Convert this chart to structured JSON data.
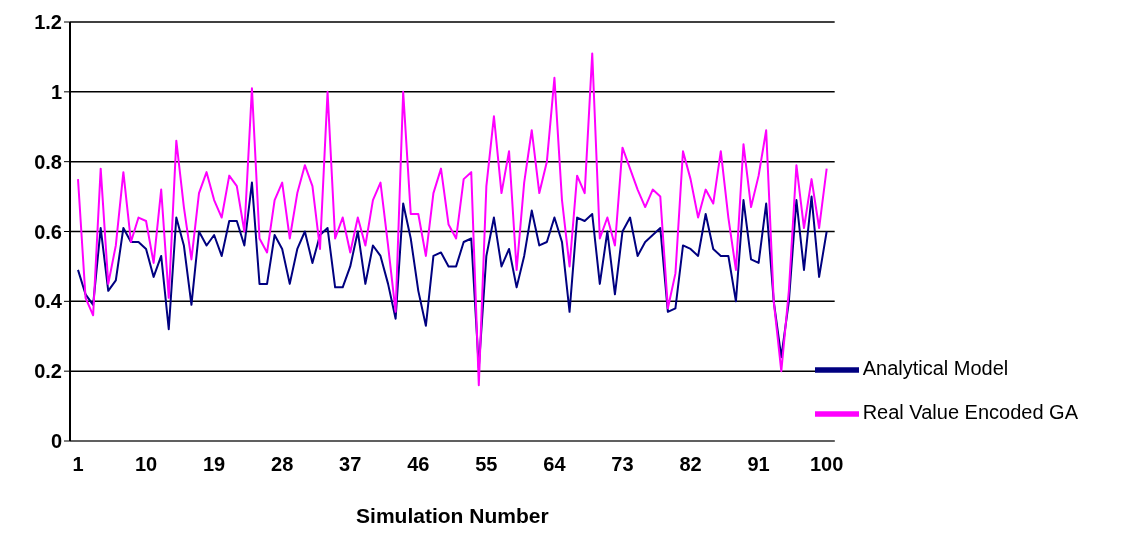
{
  "chart_data": {
    "type": "line",
    "xlabel": "Simulation Number",
    "categories": [
      "1",
      null,
      null,
      null,
      null,
      null,
      null,
      null,
      null,
      "10",
      null,
      null,
      null,
      null,
      null,
      null,
      null,
      null,
      "19",
      null,
      null,
      null,
      null,
      null,
      null,
      null,
      null,
      "28",
      null,
      null,
      null,
      null,
      null,
      null,
      null,
      null,
      "37",
      null,
      null,
      null,
      null,
      null,
      null,
      null,
      null,
      "46",
      null,
      null,
      null,
      null,
      null,
      null,
      null,
      null,
      "55",
      null,
      null,
      null,
      null,
      null,
      null,
      null,
      null,
      "64",
      null,
      null,
      null,
      null,
      null,
      null,
      null,
      null,
      "73",
      null,
      null,
      null,
      null,
      null,
      null,
      null,
      null,
      "82",
      null,
      null,
      null,
      null,
      null,
      null,
      null,
      null,
      "91",
      null,
      null,
      null,
      null,
      null,
      null,
      null,
      null,
      "100"
    ],
    "series": [
      {
        "name": "Analytical Model",
        "color": "#000080",
        "values": [
          0.49,
          0.42,
          0.39,
          0.61,
          0.43,
          0.46,
          0.61,
          0.57,
          0.57,
          0.55,
          0.47,
          0.53,
          0.32,
          0.64,
          0.56,
          0.39,
          0.6,
          0.56,
          0.59,
          0.53,
          0.63,
          0.63,
          0.56,
          0.74,
          0.45,
          0.45,
          0.59,
          0.55,
          0.45,
          0.55,
          0.6,
          0.51,
          0.59,
          0.61,
          0.44,
          0.44,
          0.5,
          0.6,
          0.45,
          0.56,
          0.53,
          0.45,
          0.35,
          0.68,
          0.58,
          0.43,
          0.33,
          0.53,
          0.54,
          0.5,
          0.5,
          0.57,
          0.58,
          0.21,
          0.53,
          0.64,
          0.5,
          0.55,
          0.44,
          0.53,
          0.66,
          0.56,
          0.57,
          0.64,
          0.57,
          0.37,
          0.64,
          0.63,
          0.65,
          0.45,
          0.6,
          0.42,
          0.6,
          0.64,
          0.53,
          0.57,
          0.59,
          0.61,
          0.37,
          0.38,
          0.56,
          0.55,
          0.53,
          0.65,
          0.55,
          0.53,
          0.53,
          0.4,
          0.69,
          0.52,
          0.51,
          0.68,
          0.4,
          0.24,
          0.4,
          0.69,
          0.49,
          0.7,
          0.47,
          0.6
        ]
      },
      {
        "name": "Real Value Encoded GA",
        "color": "#ff00ff",
        "values": [
          0.75,
          0.41,
          0.36,
          0.78,
          0.45,
          0.56,
          0.77,
          0.57,
          0.64,
          0.63,
          0.51,
          0.72,
          0.41,
          0.86,
          0.67,
          0.52,
          0.71,
          0.77,
          0.69,
          0.64,
          0.76,
          0.73,
          0.6,
          1.01,
          0.58,
          0.54,
          0.69,
          0.74,
          0.58,
          0.71,
          0.79,
          0.73,
          0.55,
          1.0,
          0.58,
          0.64,
          0.54,
          0.64,
          0.56,
          0.69,
          0.74,
          0.56,
          0.37,
          1.0,
          0.65,
          0.65,
          0.53,
          0.71,
          0.78,
          0.62,
          0.58,
          0.75,
          0.77,
          0.16,
          0.73,
          0.93,
          0.71,
          0.83,
          0.49,
          0.74,
          0.89,
          0.71,
          0.8,
          1.04,
          0.69,
          0.5,
          0.76,
          0.71,
          1.11,
          0.58,
          0.64,
          0.56,
          0.84,
          0.78,
          0.72,
          0.67,
          0.72,
          0.7,
          0.38,
          0.48,
          0.83,
          0.75,
          0.64,
          0.72,
          0.68,
          0.83,
          0.64,
          0.49,
          0.85,
          0.67,
          0.76,
          0.89,
          0.4,
          0.2,
          0.43,
          0.79,
          0.61,
          0.75,
          0.61,
          0.78
        ]
      }
    ],
    "ylim": [
      0,
      1.2
    ],
    "yticks": [
      0,
      0.2,
      0.4,
      0.6,
      0.8,
      1,
      1.2
    ],
    "grid": "y",
    "legend": "bottom right",
    "marker": "none",
    "line_style": "solid"
  }
}
